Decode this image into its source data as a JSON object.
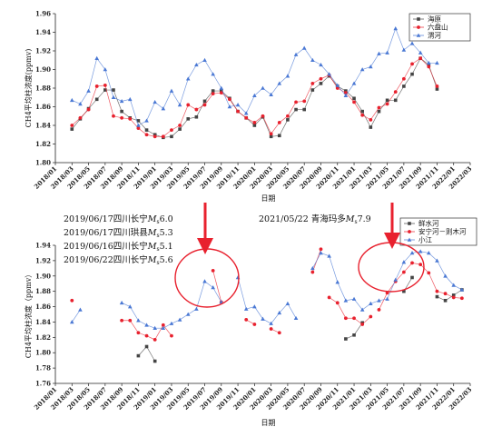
{
  "chart_data": [
    {
      "type": "line",
      "ylabel": "CH4平均柱浓度(ppmv)",
      "xlabel": "日期",
      "ylim": [
        1.8,
        1.96
      ],
      "yticks": [
        "1.80",
        "1.82",
        "1.84",
        "1.86",
        "1.88",
        "1.90",
        "1.92",
        "1.94",
        "1.96"
      ],
      "xticks": [
        "2018/01",
        "2018/03",
        "2018/05",
        "2018/07",
        "2018/09",
        "2018/11",
        "2019/01",
        "2019/03",
        "2019/05",
        "2019/07",
        "2019/09",
        "2019/11",
        "2020/01",
        "2020/03",
        "2020/05",
        "2020/07",
        "2020/09",
        "2020/11",
        "2021/01",
        "2021/03",
        "2021/05",
        "2021/07",
        "2021/09",
        "2021/11",
        "2022/01",
        "2022/03"
      ],
      "legend_position": "top-right",
      "colors": {
        "haiyuan": "#444444",
        "liupanshan": "#e8212e",
        "weihe": "#4a78d4"
      },
      "series": [
        {
          "name": "海原",
          "marker": "square",
          "color": "#444444",
          "x": [
            2,
            3,
            4,
            5,
            6,
            7,
            8,
            9,
            10,
            11,
            12,
            13,
            14,
            15,
            16,
            17,
            18,
            19,
            20,
            21,
            22,
            23,
            24,
            25,
            26,
            27,
            28,
            29,
            30,
            31,
            32,
            33,
            34,
            35,
            36,
            37,
            38,
            39,
            40,
            41,
            42,
            43,
            44,
            45,
            46
          ],
          "values": [
            1.836,
            1.847,
            1.858,
            1.868,
            1.878,
            1.878,
            1.855,
            1.848,
            1.845,
            1.835,
            1.83,
            1.827,
            1.828,
            1.836,
            1.847,
            1.849,
            1.866,
            1.877,
            1.877,
            1.869,
            1.855,
            1.848,
            1.84,
            1.849,
            1.828,
            1.829,
            1.846,
            1.857,
            1.857,
            1.878,
            1.885,
            1.893,
            1.882,
            1.877,
            1.869,
            1.855,
            1.838,
            1.855,
            1.867,
            1.867,
            1.882,
            1.895,
            1.912,
            1.905,
            1.879
          ]
        },
        {
          "name": "六盘山",
          "marker": "circle",
          "color": "#e8212e",
          "x": [
            2,
            3,
            4,
            5,
            6,
            7,
            8,
            9,
            10,
            11,
            12,
            13,
            14,
            15,
            16,
            17,
            18,
            19,
            20,
            21,
            22,
            23,
            24,
            25,
            26,
            27,
            28,
            29,
            30,
            31,
            32,
            33,
            34,
            35,
            36,
            37,
            38,
            39,
            40,
            41,
            42,
            43,
            44,
            45,
            46
          ],
          "values": [
            1.84,
            1.848,
            1.857,
            1.882,
            1.883,
            1.85,
            1.848,
            1.847,
            1.837,
            1.83,
            1.828,
            1.828,
            1.835,
            1.84,
            1.862,
            1.857,
            1.862,
            1.874,
            1.875,
            1.868,
            1.855,
            1.848,
            1.843,
            1.85,
            1.831,
            1.843,
            1.85,
            1.865,
            1.866,
            1.885,
            1.89,
            1.894,
            1.88,
            1.875,
            1.865,
            1.851,
            1.846,
            1.859,
            1.863,
            1.876,
            1.89,
            1.906,
            1.912,
            1.903,
            1.882
          ]
        },
        {
          "name": "渭河",
          "marker": "triangle",
          "color": "#4a78d4",
          "x": [
            2,
            3,
            4,
            5,
            6,
            7,
            8,
            9,
            10,
            11,
            12,
            13,
            14,
            15,
            16,
            17,
            18,
            19,
            20,
            21,
            22,
            23,
            24,
            25,
            26,
            27,
            28,
            29,
            30,
            31,
            32,
            33,
            34,
            35,
            36,
            37,
            38,
            39,
            40,
            41,
            42,
            43,
            44,
            45,
            46
          ],
          "values": [
            1.867,
            1.863,
            1.877,
            1.912,
            1.9,
            1.87,
            1.866,
            1.868,
            1.84,
            1.845,
            1.865,
            1.858,
            1.877,
            1.862,
            1.89,
            1.905,
            1.91,
            1.895,
            1.88,
            1.86,
            1.862,
            1.853,
            1.872,
            1.88,
            1.873,
            1.885,
            1.893,
            1.916,
            1.923,
            1.91,
            1.905,
            1.895,
            1.883,
            1.872,
            1.885,
            1.9,
            1.903,
            1.917,
            1.918,
            1.944,
            1.921,
            1.928,
            1.918,
            1.907,
            1.907
          ]
        }
      ]
    },
    {
      "type": "line",
      "ylabel": "CH4平均柱浓度（ppmv）",
      "xlabel": "日期",
      "ylim": [
        1.76,
        1.94
      ],
      "yticks": [
        "1.76",
        "1.78",
        "1.80",
        "1.82",
        "1.84",
        "1.86",
        "1.88",
        "1.90",
        "1.92",
        "1.94"
      ],
      "xticks": [
        "2018/01",
        "2018/03",
        "2018/05",
        "2018/07",
        "2018/09",
        "2018/11",
        "2019/01",
        "2019/03",
        "2019/05",
        "2019/07",
        "2019/09",
        "2019/11",
        "2020/01",
        "2020/03",
        "2020/05",
        "2020/07",
        "2020/09",
        "2020/11",
        "2021/01",
        "2021/03",
        "2021/05",
        "2021/07",
        "2021/09",
        "2021/11",
        "2022/01",
        "2022/03"
      ],
      "legend_position": "top-right",
      "series": [
        {
          "name": "鲜水河",
          "marker": "square",
          "color": "#444444",
          "segments": [
            {
              "x": [
                10,
                11,
                12
              ],
              "values": [
                1.796,
                1.808,
                1.789
              ]
            },
            {
              "x": [
                35,
                36,
                37
              ],
              "values": [
                1.818,
                1.823,
                1.839
              ]
            },
            {
              "x": [
                42,
                43
              ],
              "values": [
                1.88,
                1.898
              ]
            },
            {
              "x": [
                46,
                47,
                48,
                49
              ],
              "values": [
                1.873,
                1.868,
                1.875,
                1.882
              ]
            }
          ]
        },
        {
          "name": "安宁河－则木河",
          "marker": "circle",
          "color": "#e8212e",
          "segments": [
            {
              "x": [
                2
              ],
              "values": [
                1.868
              ]
            },
            {
              "x": [
                8,
                9,
                10,
                11,
                12,
                13,
                14
              ],
              "values": [
                1.842,
                1.842,
                1.826,
                1.822,
                1.817,
                1.836,
                1.822
              ]
            },
            {
              "x": [
                19,
                20
              ],
              "values": [
                1.907,
                1.866
              ]
            },
            {
              "x": [
                23,
                24
              ],
              "values": [
                1.843,
                1.837
              ]
            },
            {
              "x": [
                26,
                27
              ],
              "values": [
                1.831,
                1.826
              ]
            },
            {
              "x": [
                31,
                32
              ],
              "values": [
                1.905,
                1.935
              ]
            },
            {
              "x": [
                33,
                34,
                35,
                36,
                37,
                38
              ],
              "values": [
                1.872,
                1.865,
                1.845,
                1.845,
                1.837,
                1.847
              ]
            },
            {
              "x": [
                39,
                40,
                41,
                42,
                43,
                44,
                45,
                46,
                47,
                48,
                49
              ],
              "values": [
                1.856,
                1.878,
                1.893,
                1.905,
                1.917,
                1.915,
                1.904,
                1.88,
                1.877,
                1.872,
                1.871
              ]
            }
          ]
        },
        {
          "name": "小江",
          "marker": "triangle",
          "color": "#4a78d4",
          "segments": [
            {
              "x": [
                2,
                3
              ],
              "values": [
                1.84,
                1.856
              ]
            },
            {
              "x": [
                8,
                9,
                10,
                11,
                12,
                13,
                14,
                15,
                16,
                17,
                18,
                19,
                20
              ],
              "values": [
                1.865,
                1.86,
                1.842,
                1.836,
                1.832,
                1.832,
                1.838,
                1.843,
                1.85,
                1.857,
                1.893,
                1.885,
                1.866
              ]
            },
            {
              "x": [
                22,
                23,
                24,
                25,
                26,
                27,
                28,
                29
              ],
              "values": [
                1.898,
                1.857,
                1.86,
                1.844,
                1.838,
                1.852,
                1.864,
                1.845
              ]
            },
            {
              "x": [
                31,
                32,
                33,
                34,
                35,
                36,
                37,
                38,
                39,
                40,
                41,
                42,
                43,
                44,
                45,
                46,
                47,
                48,
                49
              ],
              "values": [
                1.91,
                1.93,
                1.926,
                1.892,
                1.868,
                1.87,
                1.856,
                1.864,
                1.868,
                1.87,
                1.895,
                1.918,
                1.93,
                1.932,
                1.93,
                1.92,
                1.9,
                1.888,
                1.882
              ]
            }
          ]
        }
      ],
      "annotations": [
        "2019/06/17四川长宁",
        "2019/06/17四川珙县",
        "2019/06/16四川长宁",
        "2019/06/22四川长宁",
        "2021/05/22 青海玛多"
      ],
      "annotation_magnitudes": [
        "M",
        "s",
        "6.0",
        "M",
        "s",
        "5.3",
        "M",
        "s",
        "5.1",
        "M",
        "s",
        "5.6",
        "M",
        "s",
        "7.9"
      ]
    }
  ]
}
